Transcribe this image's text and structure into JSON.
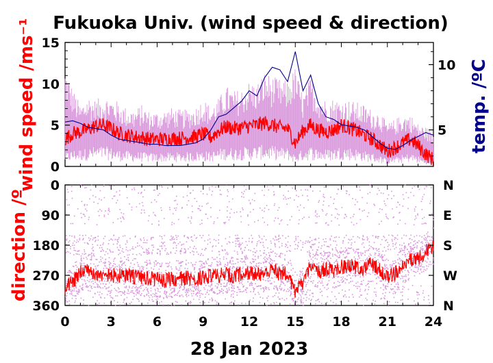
{
  "chart_data": [
    {
      "type": "line",
      "title": "Fukuoka Univ. (wind speed & direction)",
      "ylabel": "wind speed /ms⁻¹",
      "y2label": "temp. /ºC",
      "xlabel": "28 Jan 2023",
      "xlim": [
        0,
        24
      ],
      "ylim": [
        0,
        15
      ],
      "y2lim": [
        2.2,
        11.7
      ],
      "x_ticks": [
        "0",
        "3",
        "6",
        "9",
        "12",
        "15",
        "18",
        "21",
        "24"
      ],
      "y_ticks": [
        "0",
        "5",
        "10",
        "15"
      ],
      "y2_ticks": [
        "5",
        "10"
      ],
      "grid": false,
      "colors": {
        "speed": "#ff0000",
        "gust": "#d896dc",
        "temp": "#00008b"
      },
      "series": [
        {
          "role": "wind-speed",
          "x": [
            0,
            0.5,
            1,
            1.5,
            2,
            2.5,
            3,
            3.5,
            4,
            4.5,
            5,
            5.5,
            6,
            6.5,
            7,
            7.5,
            8,
            8.5,
            9,
            9.5,
            10,
            10.5,
            11,
            11.5,
            12,
            12.5,
            13,
            13.5,
            14,
            14.5,
            15,
            15.5,
            16,
            16.5,
            17,
            17.5,
            18,
            18.5,
            19,
            19.5,
            20,
            20.5,
            21,
            21.5,
            22,
            22.5,
            23,
            23.5,
            24
          ],
          "values": [
            3.3,
            4.0,
            4.2,
            4.5,
            4.9,
            5.0,
            4.6,
            4.0,
            3.8,
            3.6,
            3.5,
            3.3,
            3.3,
            3.3,
            3.4,
            3.4,
            3.5,
            3.6,
            3.9,
            3.5,
            4.3,
            4.8,
            4.6,
            4.7,
            4.9,
            5.0,
            5.3,
            5.0,
            4.7,
            4.6,
            2.8,
            4.3,
            5.0,
            4.4,
            4.2,
            4.4,
            5.0,
            4.7,
            4.3,
            3.8,
            3.3,
            2.6,
            1.8,
            2.3,
            2.8,
            3.3,
            2.5,
            1.5,
            0.8
          ]
        },
        {
          "role": "gust-max",
          "x": [
            0,
            0.5,
            1,
            1.5,
            2,
            2.5,
            3,
            3.5,
            4,
            4.5,
            5,
            5.5,
            6,
            6.5,
            7,
            7.5,
            8,
            8.5,
            9,
            9.5,
            10,
            10.5,
            11,
            11.5,
            12,
            12.5,
            13,
            13.5,
            14,
            14.5,
            15,
            15.5,
            16,
            16.5,
            17,
            17.5,
            18,
            18.5,
            19,
            19.5,
            20,
            20.5,
            21,
            21.5,
            22,
            22.5,
            23,
            23.5,
            24
          ],
          "values": [
            10.5,
            8.2,
            6.5,
            7.5,
            7.0,
            7.5,
            7.2,
            6.8,
            6.2,
            6.0,
            6.5,
            5.8,
            5.8,
            6.0,
            6.2,
            6.0,
            6.0,
            6.3,
            7.2,
            6.3,
            7.2,
            8.5,
            8.0,
            8.2,
            9.0,
            8.8,
            10.0,
            9.5,
            9.2,
            9.0,
            10.5,
            7.5,
            9.5,
            7.8,
            7.0,
            7.2,
            7.0,
            7.0,
            6.8,
            6.5,
            6.0,
            5.8,
            4.5,
            5.0,
            5.5,
            5.5,
            4.5,
            4.2,
            3.5
          ]
        },
        {
          "role": "temperature",
          "x": [
            0,
            0.5,
            1,
            1.5,
            2,
            2.5,
            3,
            3.5,
            4,
            4.5,
            5,
            5.5,
            6,
            6.5,
            7,
            7.5,
            8,
            8.5,
            9,
            9.5,
            10,
            10.5,
            11,
            11.5,
            12,
            12.5,
            13,
            13.5,
            14,
            14.5,
            15,
            15.5,
            16,
            16.5,
            17,
            17.5,
            18,
            18.5,
            19,
            19.5,
            20,
            20.5,
            21,
            21.5,
            22,
            22.5,
            23,
            23.5,
            24
          ],
          "values": [
            5.6,
            5.7,
            5.5,
            5.2,
            5.1,
            5.0,
            4.6,
            4.3,
            4.2,
            4.1,
            4.0,
            3.9,
            3.9,
            3.8,
            3.8,
            3.8,
            3.9,
            4.0,
            4.3,
            5.0,
            6.0,
            6.2,
            6.7,
            7.2,
            8.0,
            7.6,
            9.0,
            9.8,
            9.6,
            8.7,
            11.0,
            8.0,
            9.2,
            7.0,
            6.0,
            5.8,
            5.4,
            5.3,
            5.2,
            5.0,
            4.5,
            4.0,
            3.6,
            3.5,
            3.8,
            4.2,
            4.5,
            4.8,
            4.6
          ]
        }
      ]
    },
    {
      "type": "scatter",
      "ylabel": "direction /º",
      "xlim": [
        0,
        24
      ],
      "ylim": [
        360,
        0
      ],
      "y_ticks": [
        "0",
        "90",
        "180",
        "270",
        "360"
      ],
      "y2_ticks": [
        "N",
        "E",
        "S",
        "W",
        "N"
      ],
      "x_ticks": [
        "0",
        "3",
        "6",
        "9",
        "12",
        "15",
        "18",
        "21",
        "24"
      ],
      "grid": false,
      "colors": {
        "mean": "#ff0000",
        "samples": "#d896dc"
      },
      "series": [
        {
          "role": "mean-direction",
          "x": [
            0,
            0.5,
            1,
            1.5,
            2,
            2.5,
            3,
            3.5,
            4,
            4.5,
            5,
            5.5,
            6,
            6.5,
            7,
            7.5,
            8,
            8.5,
            9,
            9.5,
            10,
            10.5,
            11,
            11.5,
            12,
            12.5,
            13,
            13.5,
            14,
            14.5,
            15,
            15.5,
            16,
            16.5,
            17,
            17.5,
            18,
            18.5,
            19,
            19.5,
            20,
            20.5,
            21,
            21.5,
            22,
            22.5,
            23,
            23.5,
            24
          ],
          "values": [
            310,
            290,
            260,
            250,
            265,
            268,
            270,
            270,
            268,
            275,
            278,
            280,
            282,
            285,
            282,
            280,
            278,
            280,
            275,
            272,
            270,
            268,
            272,
            265,
            260,
            268,
            262,
            255,
            265,
            262,
            320,
            290,
            240,
            260,
            250,
            255,
            245,
            240,
            245,
            250,
            235,
            255,
            280,
            265,
            240,
            225,
            220,
            200,
            180
          ]
        }
      ]
    }
  ]
}
